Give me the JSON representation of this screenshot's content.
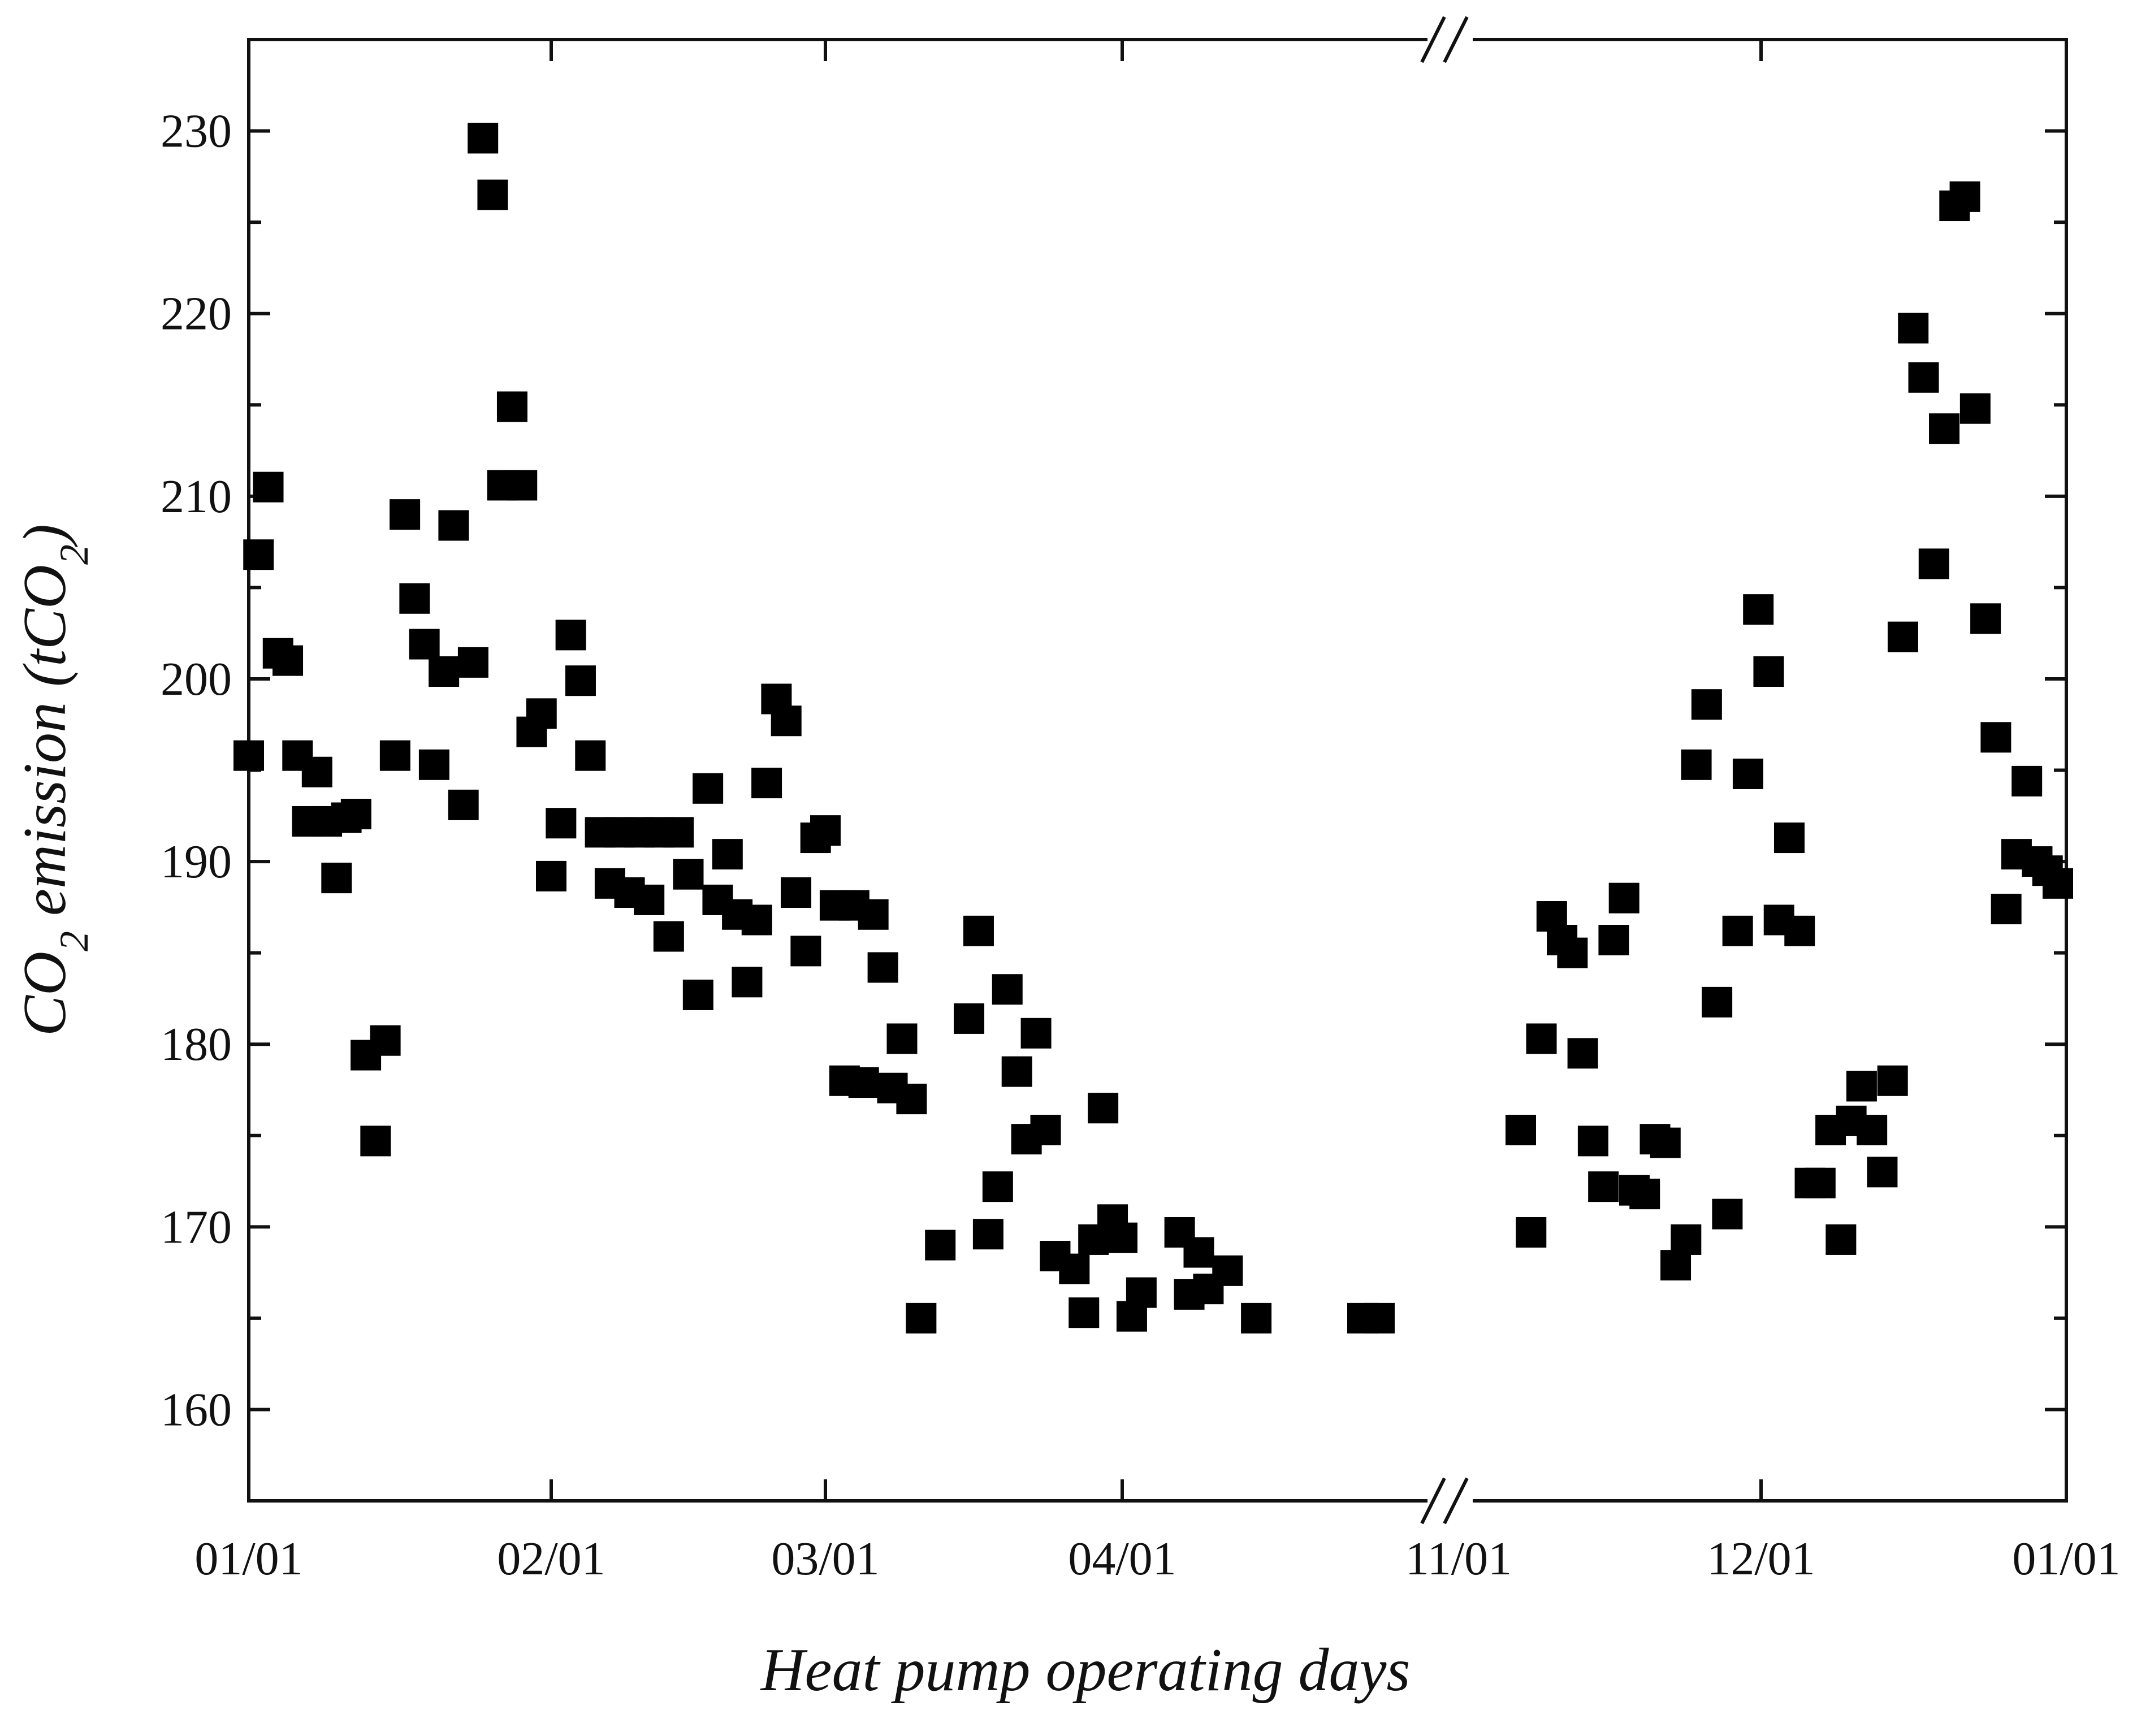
{
  "chart_data": {
    "type": "scatter",
    "title": "",
    "xlabel": "Heat pump operating days",
    "ylabel_parts": {
      "main": "CO",
      "sub": "2",
      "emission": " emission (tCO",
      "sub2": "2",
      "close": ")"
    },
    "x_axis": {
      "type": "date",
      "broken": true,
      "segments": [
        {
          "from": "01/01",
          "to": "04/01"
        },
        {
          "from": "11/01",
          "to": "01/01"
        }
      ],
      "tick_labels": [
        "01/01",
        "02/01",
        "03/01",
        "04/01",
        "11/01",
        "12/01",
        "01/01"
      ]
    },
    "y_axis": {
      "ylim": [
        155,
        235
      ],
      "ticks": [
        160,
        170,
        180,
        190,
        200,
        210,
        220,
        230
      ]
    },
    "grid": false,
    "legend": "none",
    "marker": {
      "shape": "square",
      "color": "#000000"
    },
    "segment1_points": [
      [
        "01/01",
        195.8
      ],
      [
        "01/02",
        206.8
      ],
      [
        "01/03",
        210.5
      ],
      [
        "01/04",
        201.4
      ],
      [
        "01/05",
        201.0
      ],
      [
        "01/06",
        195.8
      ],
      [
        "01/07",
        192.2
      ],
      [
        "01/08",
        194.9
      ],
      [
        "01/09",
        192.2
      ],
      [
        "01/10",
        189.1
      ],
      [
        "01/11",
        192.4
      ],
      [
        "01/12",
        192.6
      ],
      [
        "01/13",
        179.4
      ],
      [
        "01/14",
        174.7
      ],
      [
        "01/15",
        180.2
      ],
      [
        "01/16",
        195.8
      ],
      [
        "01/17",
        209.0
      ],
      [
        "01/18",
        204.4
      ],
      [
        "01/19",
        201.9
      ],
      [
        "01/20",
        195.3
      ],
      [
        "01/21",
        200.4
      ],
      [
        "01/22",
        208.4
      ],
      [
        "01/23",
        193.1
      ],
      [
        "01/24",
        200.9
      ],
      [
        "01/25",
        229.6
      ],
      [
        "01/26",
        226.5
      ],
      [
        "01/27",
        210.6
      ],
      [
        "01/28",
        214.9
      ],
      [
        "01/29",
        210.6
      ],
      [
        "01/30",
        197.1
      ],
      [
        "01/31",
        198.1
      ],
      [
        "02/01",
        189.2
      ],
      [
        "02/02",
        192.1
      ],
      [
        "02/03",
        202.4
      ],
      [
        "02/04",
        199.9
      ],
      [
        "02/05",
        195.8
      ],
      [
        "02/06",
        191.6
      ],
      [
        "02/07",
        188.8
      ],
      [
        "02/08",
        191.6
      ],
      [
        "02/09",
        188.3
      ],
      [
        "02/10",
        191.6
      ],
      [
        "02/11",
        187.9
      ],
      [
        "02/12",
        191.6
      ],
      [
        "02/13",
        185.9
      ],
      [
        "02/14",
        191.6
      ],
      [
        "02/15",
        189.3
      ],
      [
        "02/16",
        182.7
      ],
      [
        "02/17",
        194.0
      ],
      [
        "02/18",
        187.9
      ],
      [
        "02/19",
        190.4
      ],
      [
        "02/20",
        187.1
      ],
      [
        "02/21",
        183.4
      ],
      [
        "02/22",
        186.8
      ],
      [
        "02/23",
        194.3
      ],
      [
        "02/24",
        198.9
      ],
      [
        "02/25",
        197.7
      ],
      [
        "02/26",
        188.3
      ],
      [
        "02/27",
        185.1
      ],
      [
        "02/28",
        191.3
      ],
      [
        "03/01",
        191.7
      ],
      [
        "03/02",
        187.6
      ],
      [
        "03/03",
        178.0
      ],
      [
        "03/04",
        187.6
      ],
      [
        "03/05",
        177.9
      ],
      [
        "03/06",
        187.1
      ],
      [
        "03/07",
        184.2
      ],
      [
        "03/08",
        177.6
      ],
      [
        "03/09",
        180.3
      ],
      [
        "03/10",
        177.0
      ],
      [
        "03/11",
        165.0
      ],
      [
        "03/13",
        169.0
      ],
      [
        "03/16",
        181.4
      ],
      [
        "03/17",
        186.2
      ],
      [
        "03/18",
        169.6
      ],
      [
        "03/19",
        172.2
      ],
      [
        "03/20",
        183.0
      ],
      [
        "03/21",
        178.5
      ],
      [
        "03/22",
        174.8
      ],
      [
        "03/23",
        180.6
      ],
      [
        "03/24",
        175.3
      ],
      [
        "03/25",
        168.4
      ],
      [
        "03/27",
        167.7
      ],
      [
        "03/28",
        165.3
      ],
      [
        "03/29",
        169.3
      ],
      [
        "03/30",
        176.5
      ],
      [
        "03/31",
        170.4
      ],
      [
        "04/01",
        169.4
      ],
      [
        "04/02",
        165.1
      ],
      [
        "04/03",
        166.4
      ],
      [
        "04/07",
        169.7
      ],
      [
        "04/08",
        166.3
      ],
      [
        "04/09",
        168.6
      ],
      [
        "04/10",
        166.6
      ],
      [
        "04/12",
        167.6
      ],
      [
        "04/15",
        165.0
      ]
    ],
    "break_points": [
      [
        "gap",
        165.0
      ],
      [
        "gap",
        165.0
      ]
    ],
    "segment2_points": [
      [
        "11/09",
        175.3
      ],
      [
        "11/10",
        169.7
      ],
      [
        "11/13",
        180.3
      ],
      [
        "11/14",
        187.0
      ],
      [
        "11/15",
        185.7
      ],
      [
        "11/16",
        185.0
      ],
      [
        "11/17",
        179.5
      ],
      [
        "11/18",
        174.7
      ],
      [
        "11/19",
        172.2
      ],
      [
        "11/20",
        185.7
      ],
      [
        "11/21",
        188.0
      ],
      [
        "11/22",
        172.0
      ],
      [
        "11/23",
        171.8
      ],
      [
        "11/24",
        174.8
      ],
      [
        "11/25",
        174.6
      ],
      [
        "11/26",
        167.9
      ],
      [
        "11/27",
        169.3
      ],
      [
        "11/28",
        195.3
      ],
      [
        "11/29",
        198.6
      ],
      [
        "11/30",
        182.3
      ],
      [
        "11/31",
        170.7
      ],
      [
        "12/01a",
        186.2
      ],
      [
        "12/02a",
        194.8
      ],
      [
        "12/03a",
        203.8
      ],
      [
        "12/01",
        200.4
      ],
      [
        "12/02",
        186.8
      ],
      [
        "12/03",
        191.3
      ],
      [
        "12/04",
        186.2
      ],
      [
        "12/05",
        172.4
      ],
      [
        "12/06",
        172.4
      ],
      [
        "12/07",
        175.3
      ],
      [
        "12/10",
        169.3
      ],
      [
        "12/11",
        175.8
      ],
      [
        "12/12",
        177.7
      ],
      [
        "12/13",
        175.3
      ],
      [
        "12/14",
        173.0
      ],
      [
        "12/15",
        178.0
      ],
      [
        "12/16",
        202.3
      ],
      [
        "12/17",
        219.2
      ],
      [
        "12/18",
        216.5
      ],
      [
        "12/19",
        206.3
      ],
      [
        "12/20",
        213.7
      ],
      [
        "12/21",
        225.9
      ],
      [
        "12/22",
        226.4
      ],
      [
        "12/23",
        214.8
      ],
      [
        "12/24",
        203.3
      ],
      [
        "12/25",
        196.8
      ],
      [
        "12/26",
        187.4
      ],
      [
        "12/27",
        190.4
      ],
      [
        "12/28",
        194.4
      ],
      [
        "12/29",
        190.0
      ],
      [
        "12/30",
        189.5
      ],
      [
        "12/31",
        188.8
      ]
    ]
  }
}
